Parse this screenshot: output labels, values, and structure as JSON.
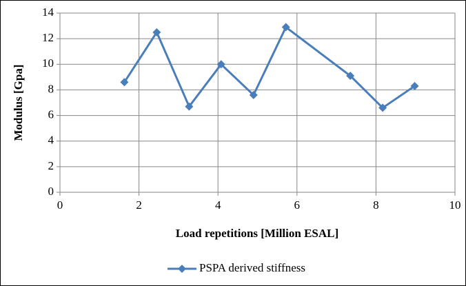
{
  "chart_data": {
    "type": "line",
    "x_label": "Load repetitions [Million ESAL]",
    "y_label": "Modulus [Gpa]",
    "x": [
      1.63,
      2.45,
      3.27,
      4.08,
      4.9,
      5.72,
      7.35,
      8.17,
      8.98
    ],
    "series": [
      {
        "name": "PSPA derived stiffness",
        "color": "#4a7ebb",
        "values": [
          8.6,
          12.5,
          6.7,
          10.0,
          7.6,
          12.9,
          9.1,
          6.6,
          8.3
        ]
      }
    ],
    "xlim": [
      0,
      10
    ],
    "xticks": [
      0,
      2,
      4,
      6,
      8,
      10
    ],
    "ylim": [
      0,
      14
    ],
    "yticks": [
      0,
      2,
      4,
      6,
      8,
      10,
      12,
      14
    ],
    "grid": true,
    "legend": "bottom"
  }
}
